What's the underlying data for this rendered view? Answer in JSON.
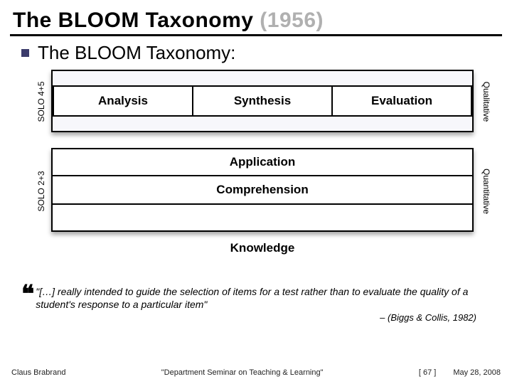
{
  "title_main": "The BLOOM Taxonomy ",
  "title_year": "(1956)",
  "subtitle": "The BLOOM Taxonomy:",
  "left_labels": {
    "top": "SOLO 4+5",
    "bottom": "SOLO 2+3"
  },
  "right_labels": {
    "top": "Qualitative",
    "bottom": "Quantitative"
  },
  "rows": {
    "top": [
      "Analysis",
      "Synthesis",
      "Evaluation"
    ],
    "mid": [
      "Application",
      "Comprehension"
    ],
    "bottom": "Knowledge"
  },
  "quote": {
    "text": "\"[…] really intended to guide the selection of items for a test rather than to evaluate the quality of a student's response to a particular item\"",
    "attribution": "– (Biggs & Collis, 1982)"
  },
  "footer": {
    "left": "Claus Brabrand",
    "center": "\"Department Seminar on Teaching & Learning\"",
    "page": "[ 67 ]",
    "date": "May 28, 2008"
  },
  "colors": {
    "year_gray": "#b0b0b0",
    "bullet": "#3b3b6b",
    "background": "#ffffff",
    "block_bg": "#f7f7fb"
  }
}
